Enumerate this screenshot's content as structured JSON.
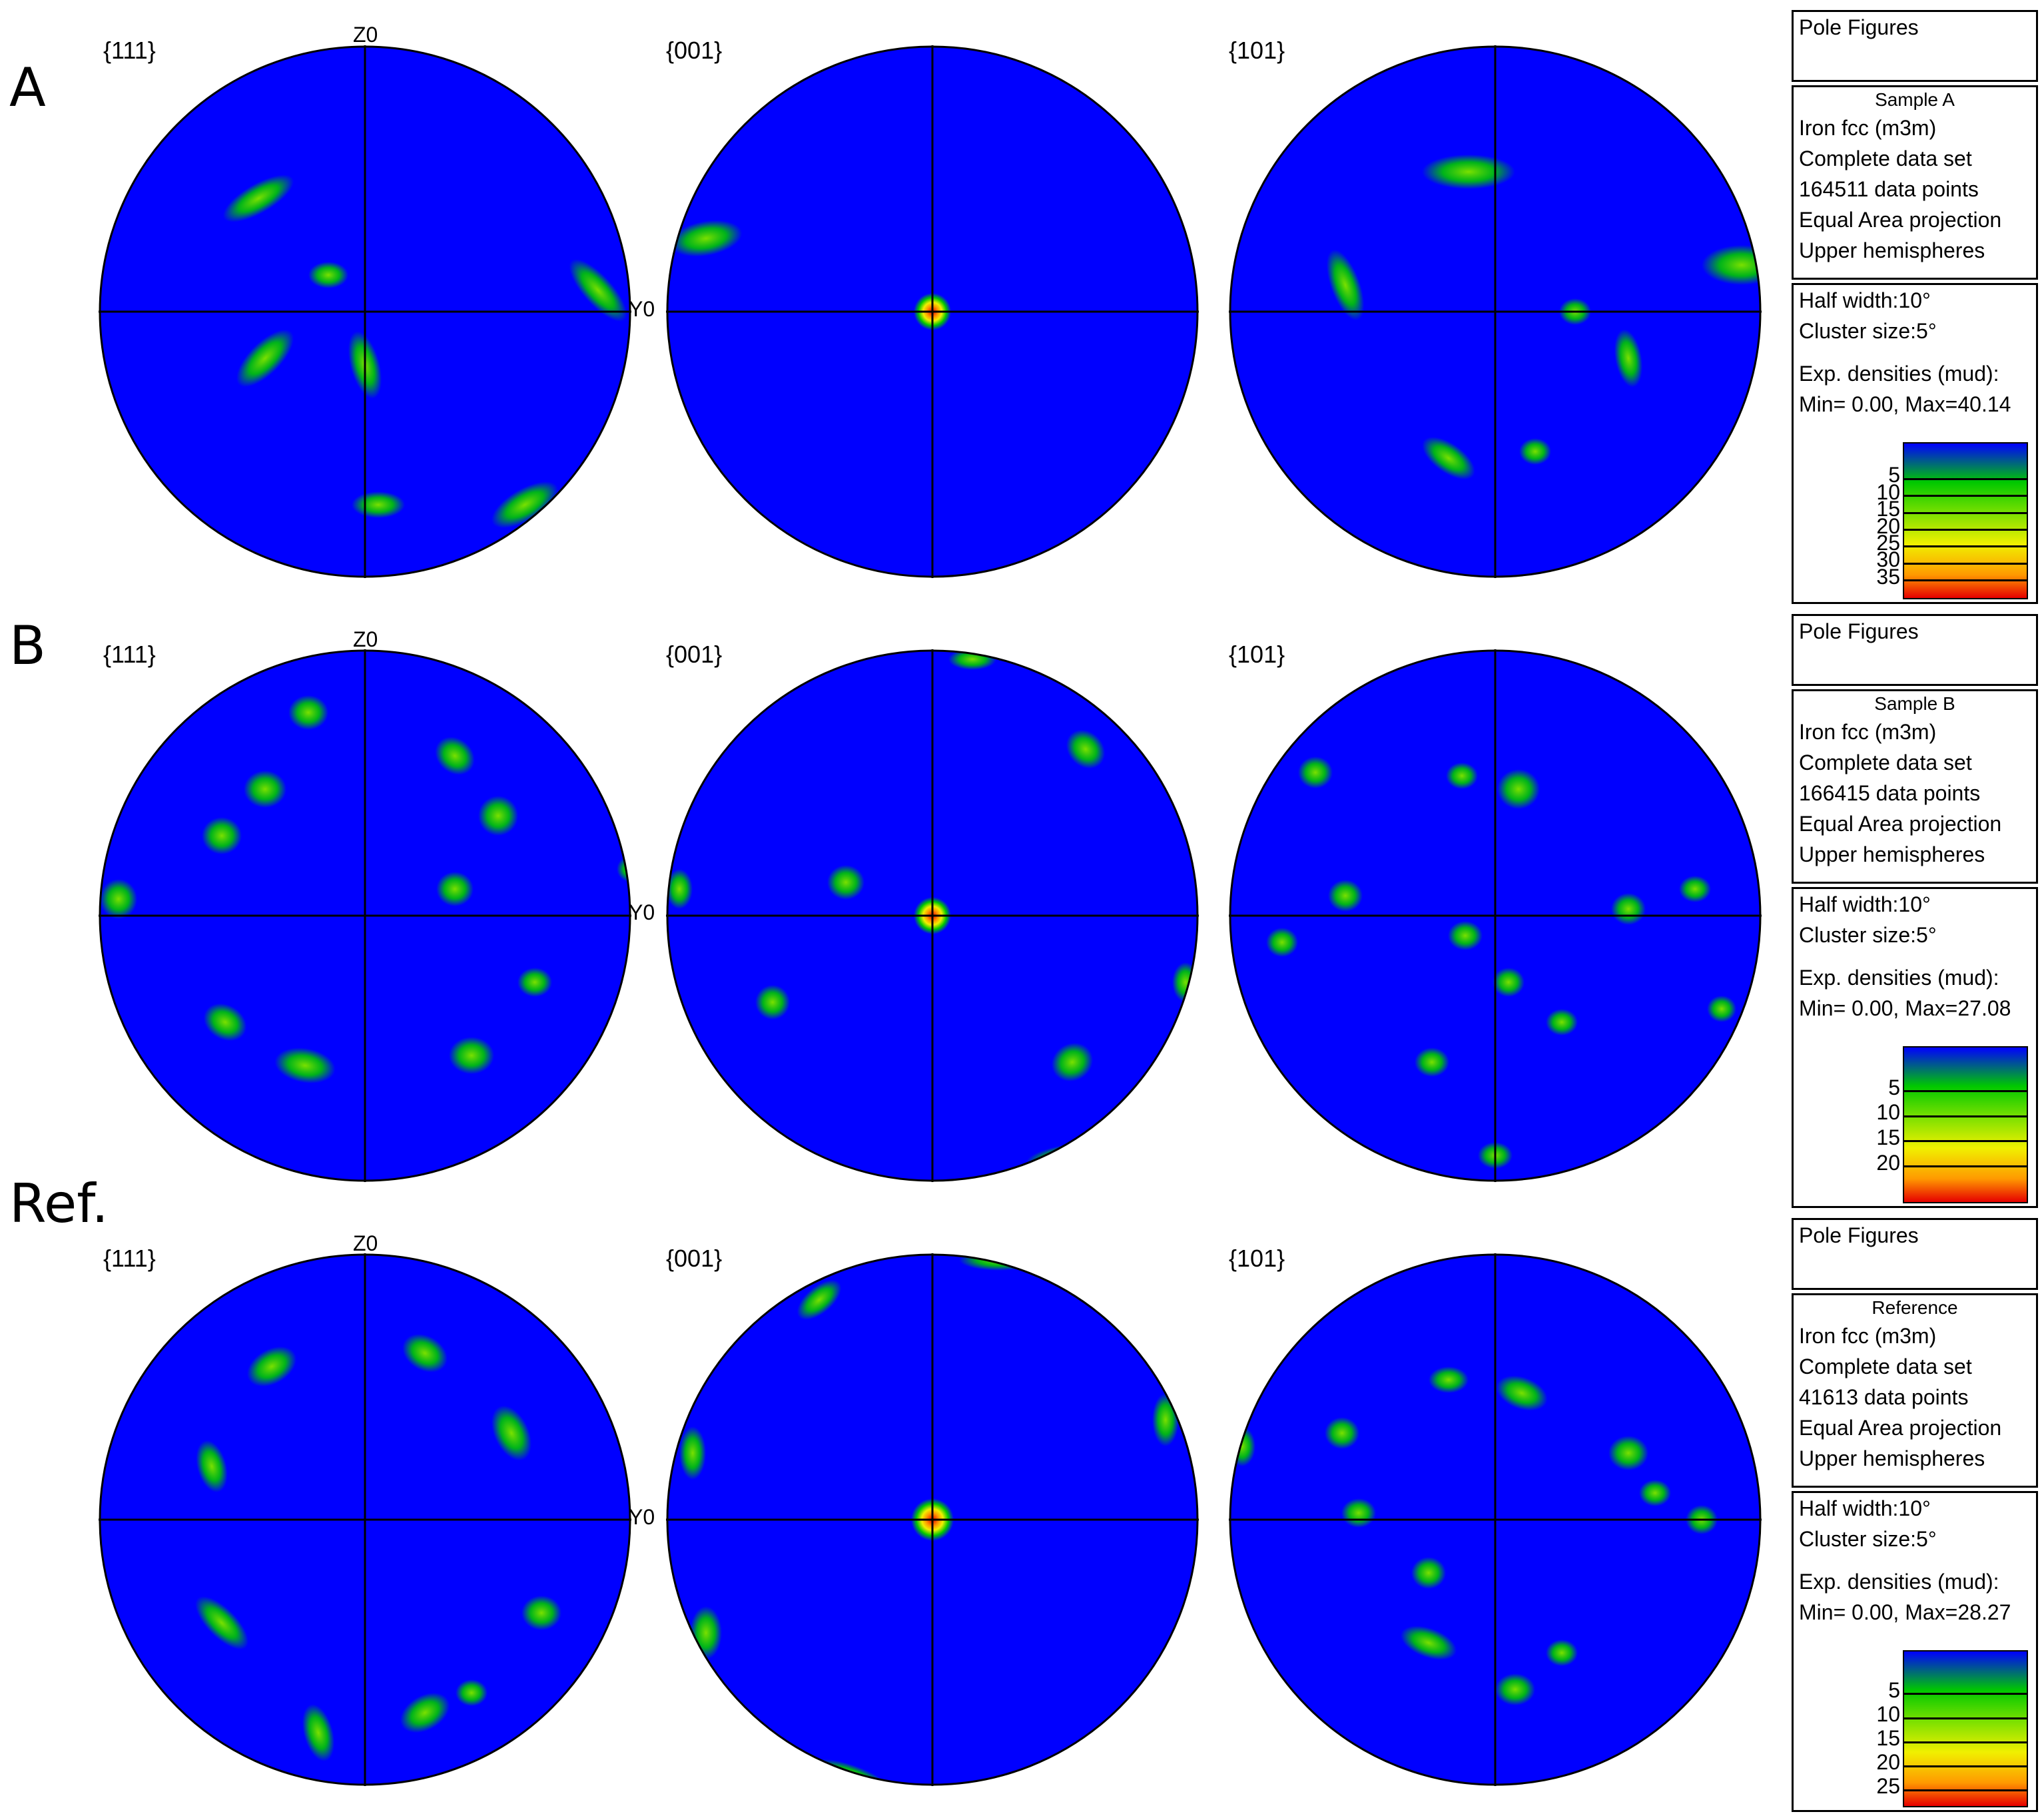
{
  "colors": {
    "low": "#0000ff",
    "mid": "#00c800",
    "high_green": "#7ae000",
    "yellow": "#f0f000",
    "orange": "#ff9900",
    "max": "#e60000"
  },
  "rows": [
    {
      "label": "A",
      "figures": [
        {
          "family": "{111}",
          "axis_z": "Z0",
          "axis_y": "Y0"
        },
        {
          "family": "{001}"
        },
        {
          "family": "{101}"
        }
      ],
      "info": {
        "pole_figures": "Pole Figures",
        "sample": "Sample A",
        "phase": "Iron fcc (m3m)",
        "dataset": "Complete data set",
        "points": "164511 data points",
        "projection": "Equal Area projection",
        "hemisphere": "Upper hemispheres",
        "half_width": "Half width:10°",
        "cluster": "Cluster size:5°",
        "densities": "Exp. densities (mud):",
        "minmax": "Min= 0.00, Max=40.14",
        "legend_ticks": [
          "5",
          "10",
          "15",
          "20",
          "25",
          "30",
          "35"
        ],
        "legend_max": 40.14
      }
    },
    {
      "label": "B",
      "figures": [
        {
          "family": "{111}",
          "axis_z": "Z0",
          "axis_y": "Y0"
        },
        {
          "family": "{001}"
        },
        {
          "family": "{101}"
        }
      ],
      "info": {
        "pole_figures": "Pole Figures",
        "sample": "Sample B",
        "phase": "Iron fcc (m3m)",
        "dataset": "Complete data set",
        "points": "166415 data points",
        "projection": "Equal Area projection",
        "hemisphere": "Upper hemispheres",
        "half_width": "Half width:10°",
        "cluster": "Cluster size:5°",
        "densities": "Exp. densities (mud):",
        "minmax": "Min= 0.00, Max=27.08",
        "legend_ticks": [
          "5",
          "10",
          "15",
          "20"
        ],
        "legend_max": 27.08
      }
    },
    {
      "label": "Ref.",
      "figures": [
        {
          "family": "{111}",
          "axis_z": "Z0",
          "axis_y": "Y0"
        },
        {
          "family": "{001}"
        },
        {
          "family": "{101}"
        }
      ],
      "info": {
        "pole_figures": "Pole Figures",
        "sample": "Reference",
        "phase": "Iron fcc (m3m)",
        "dataset": "Complete data set",
        "points": "41613 data points",
        "projection": "Equal Area projection",
        "hemisphere": "Upper hemispheres",
        "half_width": "Half width:10°",
        "cluster": "Cluster size:5°",
        "densities": "Exp. densities (mud):",
        "minmax": "Min= 0.00, Max=28.27",
        "legend_ticks": [
          "5",
          "10",
          "15",
          "20",
          "25"
        ],
        "legend_max": 28.27
      }
    }
  ]
}
